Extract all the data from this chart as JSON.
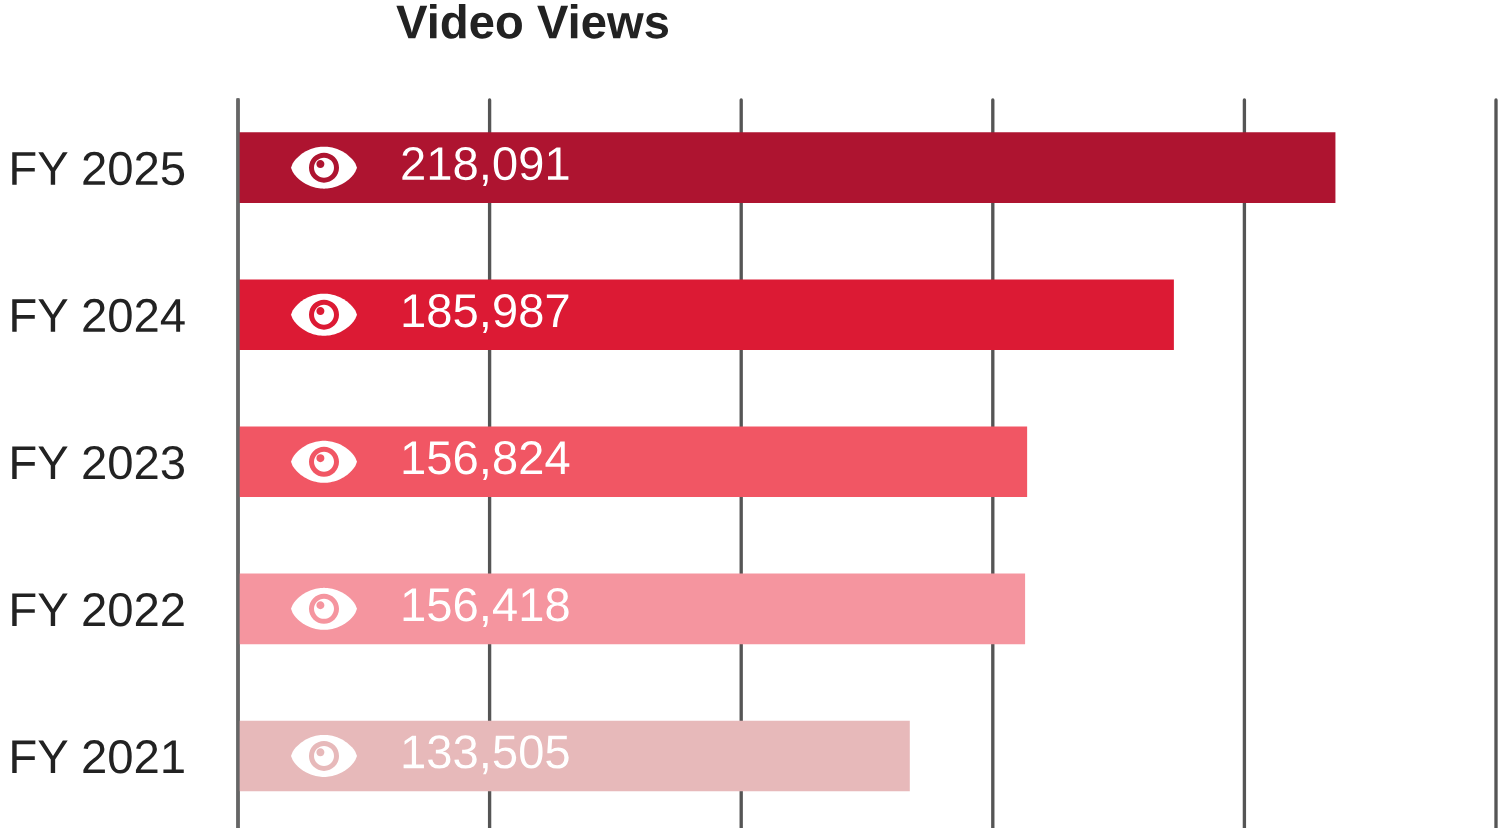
{
  "chart_data": {
    "type": "bar",
    "orientation": "horizontal",
    "title": "Video Views",
    "categories": [
      "FY 2025",
      "FY 2024",
      "FY 2023",
      "FY 2022",
      "FY 2021"
    ],
    "values": [
      218091,
      185987,
      156824,
      156418,
      133505
    ],
    "value_labels": [
      "218,091",
      "185,987",
      "156,824",
      "156,418",
      "133,505"
    ],
    "colors": [
      "#ae1430",
      "#dc1a34",
      "#f15664",
      "#f5959f",
      "#e7b9ba"
    ],
    "xlim": [
      0,
      250000
    ],
    "xticks": [
      {
        "value": 0,
        "label": null
      },
      {
        "value": 50000,
        "label": null
      },
      {
        "value": 100000,
        "label": null
      },
      {
        "value": 150000,
        "label": null
      },
      {
        "value": 200000,
        "label": null
      },
      {
        "value": 250000,
        "label": null
      }
    ],
    "grid": "x",
    "tick_labels": "y"
  }
}
